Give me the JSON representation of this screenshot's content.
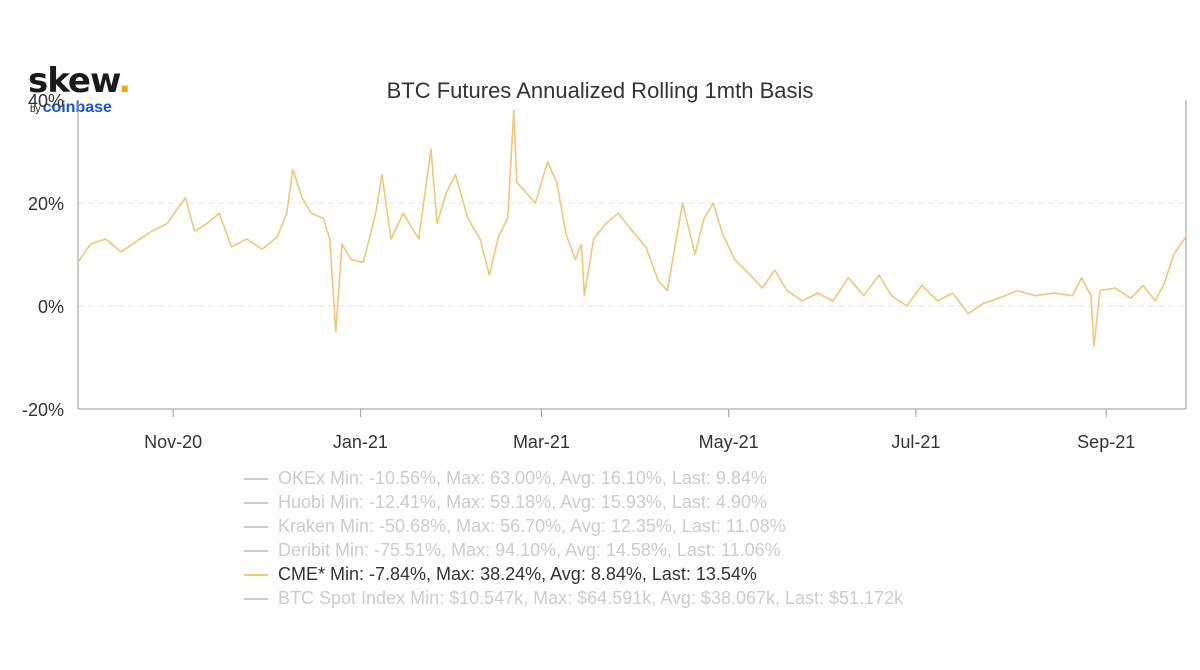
{
  "logo": {
    "main": "skew",
    "dot": ".",
    "by": "by",
    "brand": "coinbase"
  },
  "chart_data": {
    "type": "line",
    "title": "BTC Futures Annualized Rolling 1mth Basis",
    "xlabel": "",
    "ylabel": "",
    "x_ticks": [
      "Nov-20",
      "Jan-21",
      "Mar-21",
      "May-21",
      "Jul-21",
      "Sep-21"
    ],
    "x_tick_dates": [
      "2020-11-01",
      "2021-01-01",
      "2021-03-01",
      "2021-05-01",
      "2021-07-01",
      "2021-09-01"
    ],
    "x_range": [
      "2020-10-01",
      "2021-09-27"
    ],
    "y_ticks": [
      "40%",
      "20%",
      "0%",
      "-20%"
    ],
    "ylim": [
      -20,
      40
    ],
    "y_unit": "%",
    "grid": "horizontal dashed",
    "legend_position": "bottom",
    "series": [
      {
        "name": "CME*",
        "color": "#f0c774",
        "points": [
          [
            "2020-10-01",
            8.5
          ],
          [
            "2020-10-05",
            12
          ],
          [
            "2020-10-10",
            13
          ],
          [
            "2020-10-15",
            10.5
          ],
          [
            "2020-10-20",
            12.5
          ],
          [
            "2020-10-25",
            14.5
          ],
          [
            "2020-10-30",
            16
          ],
          [
            "2020-11-05",
            21
          ],
          [
            "2020-11-08",
            14.5
          ],
          [
            "2020-11-12",
            16
          ],
          [
            "2020-11-16",
            18
          ],
          [
            "2020-11-20",
            11.5
          ],
          [
            "2020-11-25",
            13
          ],
          [
            "2020-11-30",
            11
          ],
          [
            "2020-12-05",
            13.5
          ],
          [
            "2020-12-08",
            18
          ],
          [
            "2020-12-10",
            26.5
          ],
          [
            "2020-12-13",
            21
          ],
          [
            "2020-12-16",
            18
          ],
          [
            "2020-12-20",
            17
          ],
          [
            "2020-12-22",
            13
          ],
          [
            "2020-12-24",
            -5
          ],
          [
            "2020-12-26",
            12
          ],
          [
            "2020-12-29",
            9
          ],
          [
            "2021-01-02",
            8.5
          ],
          [
            "2021-01-06",
            18
          ],
          [
            "2021-01-08",
            25.5
          ],
          [
            "2021-01-11",
            13
          ],
          [
            "2021-01-15",
            18
          ],
          [
            "2021-01-20",
            13
          ],
          [
            "2021-01-24",
            30.5
          ],
          [
            "2021-01-26",
            16
          ],
          [
            "2021-01-29",
            22
          ],
          [
            "2021-02-01",
            25.5
          ],
          [
            "2021-02-05",
            17
          ],
          [
            "2021-02-09",
            13
          ],
          [
            "2021-02-12",
            6
          ],
          [
            "2021-02-15",
            13.5
          ],
          [
            "2021-02-18",
            17
          ],
          [
            "2021-02-20",
            38
          ],
          [
            "2021-02-21",
            24
          ],
          [
            "2021-02-24",
            22
          ],
          [
            "2021-02-27",
            20
          ],
          [
            "2021-03-03",
            28
          ],
          [
            "2021-03-06",
            24
          ],
          [
            "2021-03-09",
            14
          ],
          [
            "2021-03-12",
            9
          ],
          [
            "2021-03-14",
            12
          ],
          [
            "2021-03-15",
            2
          ],
          [
            "2021-03-18",
            13
          ],
          [
            "2021-03-22",
            16
          ],
          [
            "2021-03-26",
            18
          ],
          [
            "2021-03-30",
            15
          ],
          [
            "2021-04-04",
            11.5
          ],
          [
            "2021-04-08",
            5
          ],
          [
            "2021-04-11",
            3
          ],
          [
            "2021-04-16",
            20
          ],
          [
            "2021-04-20",
            10
          ],
          [
            "2021-04-23",
            17
          ],
          [
            "2021-04-26",
            20
          ],
          [
            "2021-04-29",
            14
          ],
          [
            "2021-05-03",
            9
          ],
          [
            "2021-05-08",
            6
          ],
          [
            "2021-05-12",
            3.5
          ],
          [
            "2021-05-16",
            7
          ],
          [
            "2021-05-20",
            3
          ],
          [
            "2021-05-25",
            1
          ],
          [
            "2021-05-30",
            2.5
          ],
          [
            "2021-06-04",
            1
          ],
          [
            "2021-06-09",
            5.5
          ],
          [
            "2021-06-14",
            2
          ],
          [
            "2021-06-19",
            6
          ],
          [
            "2021-06-23",
            2
          ],
          [
            "2021-06-28",
            0
          ],
          [
            "2021-07-03",
            4
          ],
          [
            "2021-07-08",
            1
          ],
          [
            "2021-07-13",
            2.5
          ],
          [
            "2021-07-18",
            -1.5
          ],
          [
            "2021-07-23",
            0.5
          ],
          [
            "2021-07-28",
            1.5
          ],
          [
            "2021-08-03",
            3
          ],
          [
            "2021-08-09",
            2
          ],
          [
            "2021-08-15",
            2.5
          ],
          [
            "2021-08-21",
            2
          ],
          [
            "2021-08-24",
            5.5
          ],
          [
            "2021-08-27",
            2
          ],
          [
            "2021-08-28",
            -7.8
          ],
          [
            "2021-08-30",
            3
          ],
          [
            "2021-09-04",
            3.5
          ],
          [
            "2021-09-09",
            1.5
          ],
          [
            "2021-09-13",
            4
          ],
          [
            "2021-09-17",
            1
          ],
          [
            "2021-09-20",
            4.5
          ],
          [
            "2021-09-23",
            10
          ],
          [
            "2021-09-27",
            13.5
          ]
        ]
      }
    ]
  },
  "legend": [
    {
      "name": "OKEx",
      "stats": "Min: -10.56%, Max: 63.00%, Avg: 16.10%, Last: 9.84%",
      "active": false
    },
    {
      "name": "Huobi",
      "stats": "Min: -12.41%, Max: 59.18%, Avg: 15.93%, Last: 4.90%",
      "active": false
    },
    {
      "name": "Kraken",
      "stats": "Min: -50.68%, Max: 56.70%, Avg: 12.35%, Last: 11.08%",
      "active": false
    },
    {
      "name": "Deribit",
      "stats": "Min: -75.51%, Max: 94.10%, Avg: 14.58%, Last: 11.06%",
      "active": false
    },
    {
      "name": "CME*",
      "stats": "Min: -7.84%, Max: 38.24%, Avg: 8.84%, Last: 13.54%",
      "active": true,
      "color": "#f0c774"
    },
    {
      "name": "BTC Spot Index",
      "stats": "Min: $10.547k, Max: $64.591k, Avg: $38.067k, Last: $51.172k",
      "active": false
    }
  ],
  "colors": {
    "inactive": "#cccccc",
    "active_text": "#333333",
    "axis": "#999999",
    "grid": "#e6e6e6"
  }
}
